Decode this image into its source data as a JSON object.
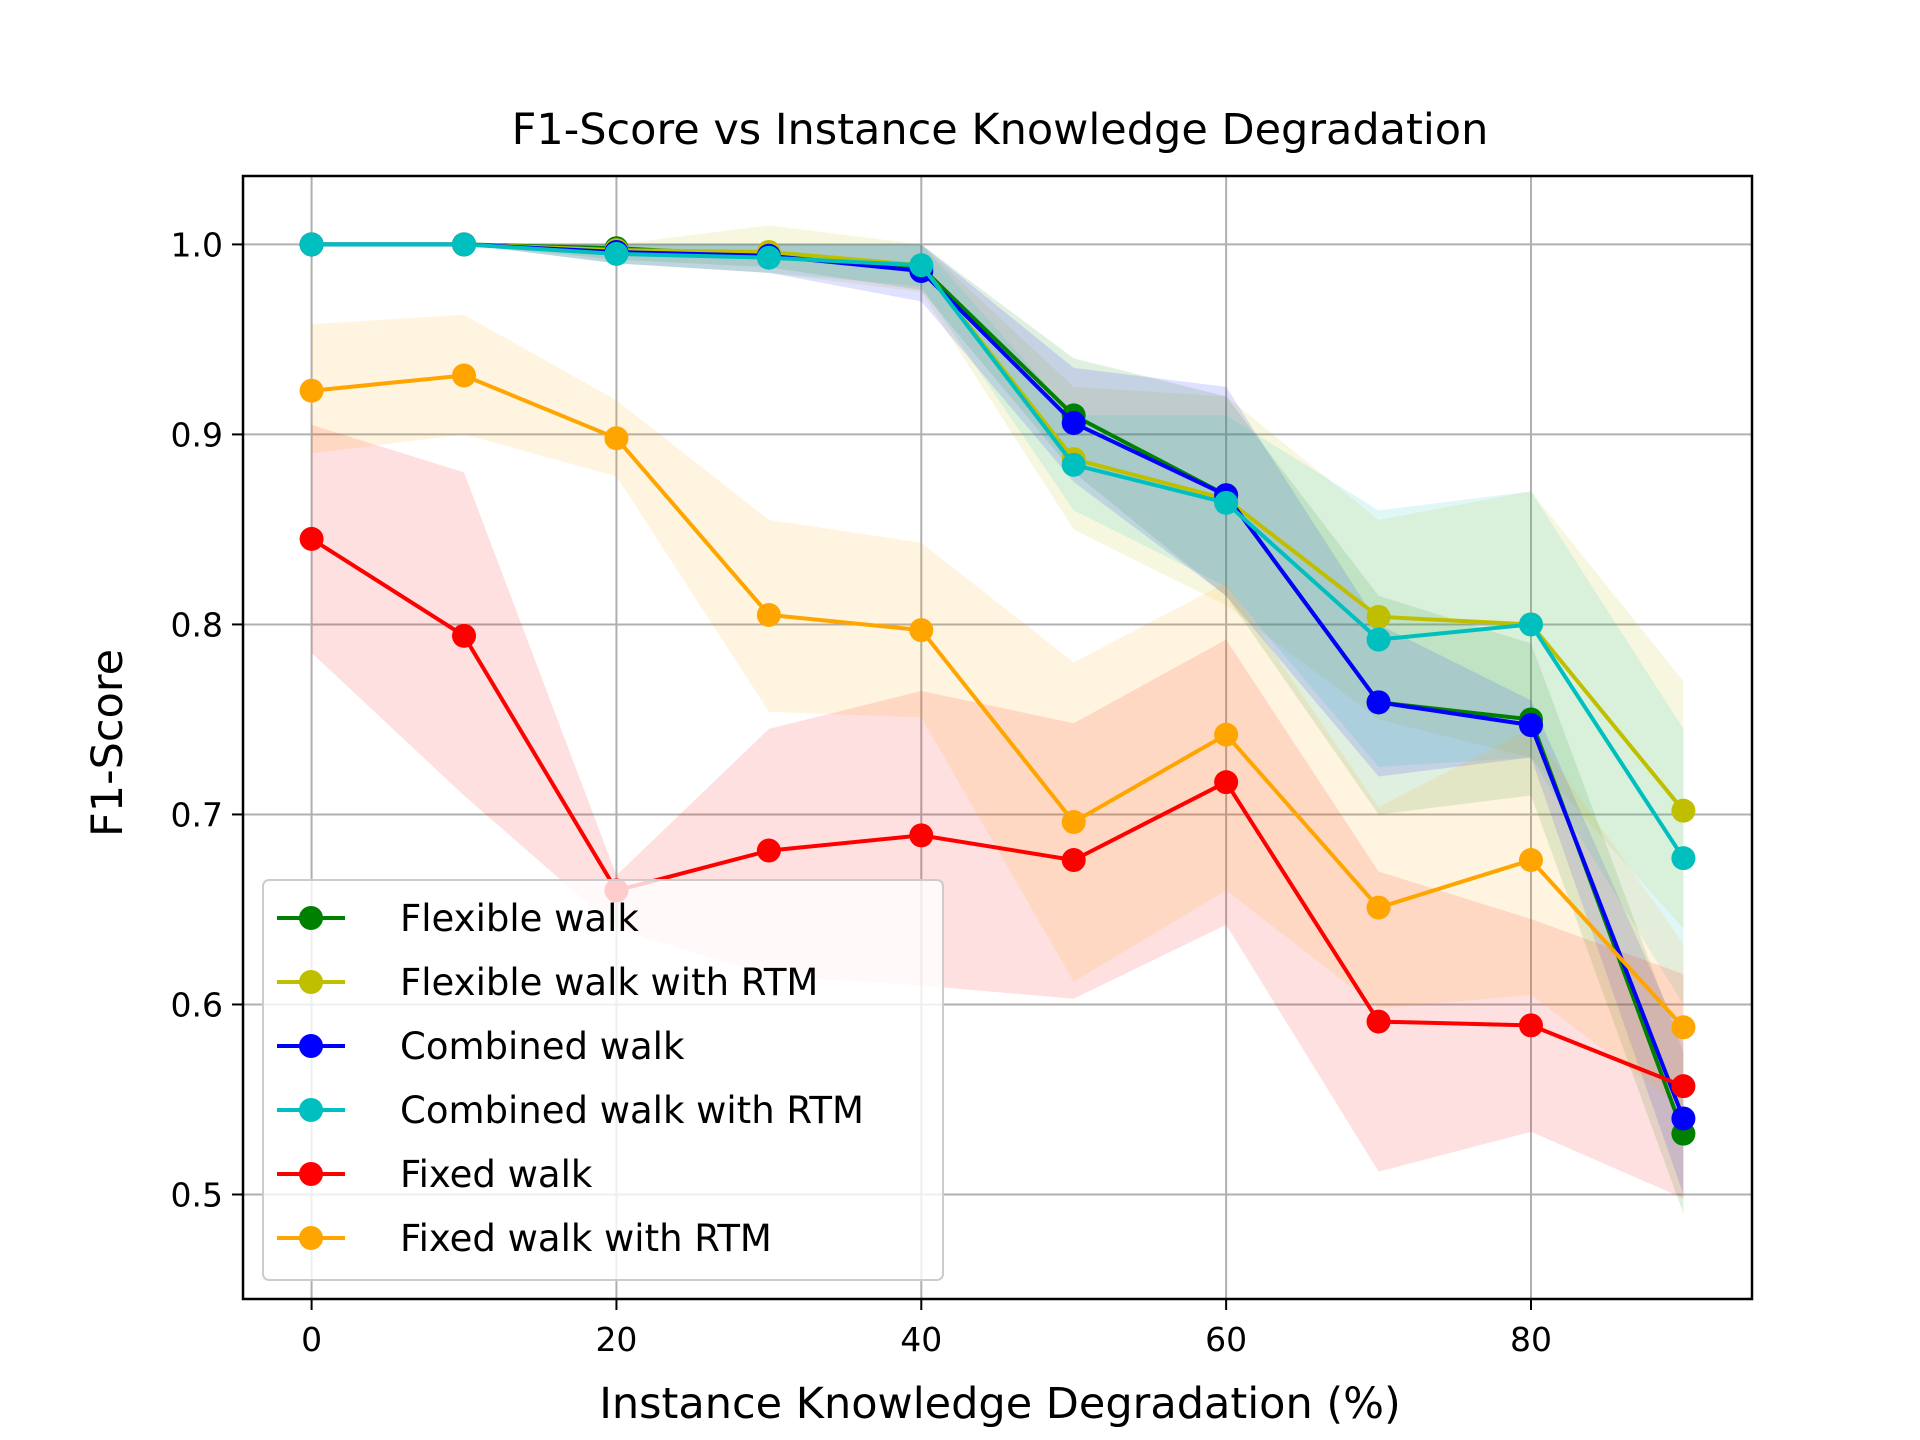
{
  "chart_data": {
    "type": "line",
    "title": "F1-Score vs Instance Knowledge Degradation",
    "xlabel": "Instance Knowledge Degradation (%)",
    "ylabel": "F1-Score",
    "xlim": [
      -4.5,
      94.5
    ],
    "ylim": [
      0.445,
      1.036
    ],
    "xticks": [
      0,
      20,
      40,
      60,
      80
    ],
    "xtick_labels": [
      "0",
      "20",
      "40",
      "60",
      "80"
    ],
    "yticks": [
      0.5,
      0.6,
      0.7,
      0.8,
      0.9,
      1.0
    ],
    "ytick_labels": [
      "0.5",
      "0.6",
      "0.7",
      "0.8",
      "0.9",
      "1.0"
    ],
    "grid": true,
    "legend_position": "lower-left",
    "x": [
      0,
      10,
      20,
      30,
      40,
      50,
      60,
      70,
      80,
      90
    ],
    "series": [
      {
        "name": "Flexible walk",
        "color": "#008000",
        "values": [
          1.0,
          1.0,
          0.998,
          0.994,
          0.988,
          0.91,
          0.868,
          0.759,
          0.75,
          0.532
        ],
        "lower": [
          1.0,
          1.0,
          0.992,
          0.988,
          0.976,
          0.88,
          0.815,
          0.7,
          0.71,
          0.49
        ],
        "upper": [
          1.0,
          1.0,
          1.0,
          1.0,
          1.0,
          0.94,
          0.92,
          0.815,
          0.79,
          0.575
        ]
      },
      {
        "name": "Flexible walk with RTM",
        "color": "#bfbf00",
        "values": [
          1.0,
          1.0,
          0.997,
          0.996,
          0.989,
          0.887,
          0.866,
          0.804,
          0.8,
          0.702
        ],
        "lower": [
          1.0,
          1.0,
          0.99,
          0.985,
          0.975,
          0.85,
          0.81,
          0.75,
          0.73,
          0.64
        ],
        "upper": [
          1.0,
          1.0,
          1.0,
          1.01,
          1.0,
          0.925,
          0.92,
          0.855,
          0.87,
          0.77
        ]
      },
      {
        "name": "Combined walk",
        "color": "#0000ff",
        "values": [
          1.0,
          1.0,
          0.996,
          0.994,
          0.986,
          0.906,
          0.868,
          0.759,
          0.747,
          0.54
        ],
        "lower": [
          1.0,
          1.0,
          0.99,
          0.985,
          0.97,
          0.875,
          0.815,
          0.72,
          0.73,
          0.5
        ],
        "upper": [
          1.0,
          1.0,
          1.0,
          1.0,
          1.0,
          0.935,
          0.925,
          0.8,
          0.76,
          0.58
        ]
      },
      {
        "name": "Combined walk with RTM",
        "color": "#00bfbf",
        "values": [
          1.0,
          1.0,
          0.995,
          0.993,
          0.989,
          0.884,
          0.864,
          0.792,
          0.8,
          0.677
        ],
        "lower": [
          1.0,
          1.0,
          0.99,
          0.985,
          0.978,
          0.86,
          0.82,
          0.725,
          0.73,
          0.6
        ],
        "upper": [
          1.0,
          1.0,
          1.0,
          1.0,
          1.0,
          0.91,
          0.91,
          0.86,
          0.87,
          0.745
        ]
      },
      {
        "name": "Fixed walk",
        "color": "#ff0000",
        "values": [
          0.845,
          0.794,
          0.66,
          0.681,
          0.689,
          0.676,
          0.717,
          0.591,
          0.589,
          0.557
        ],
        "lower": [
          0.785,
          0.71,
          0.64,
          0.615,
          0.61,
          0.603,
          0.642,
          0.512,
          0.533,
          0.498
        ],
        "upper": [
          0.905,
          0.88,
          0.668,
          0.745,
          0.765,
          0.748,
          0.792,
          0.67,
          0.645,
          0.616
        ]
      },
      {
        "name": "Fixed walk with RTM",
        "color": "#ffa500",
        "values": [
          0.923,
          0.931,
          0.898,
          0.805,
          0.797,
          0.696,
          0.742,
          0.651,
          0.676,
          0.588
        ],
        "lower": [
          0.89,
          0.9,
          0.878,
          0.754,
          0.751,
          0.612,
          0.66,
          0.598,
          0.605,
          0.545
        ],
        "upper": [
          0.958,
          0.963,
          0.918,
          0.855,
          0.843,
          0.78,
          0.822,
          0.704,
          0.745,
          0.632
        ]
      }
    ]
  }
}
